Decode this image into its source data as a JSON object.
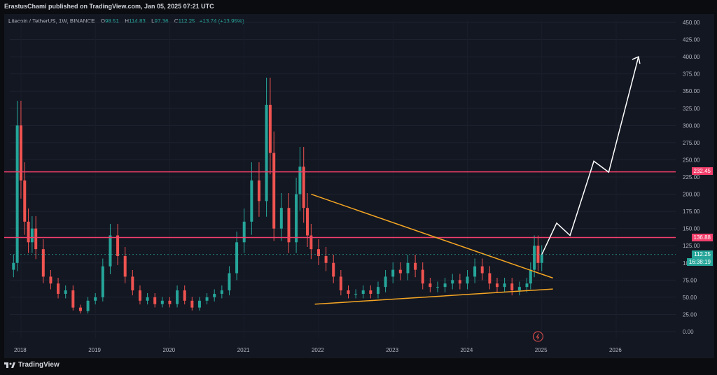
{
  "header": {
    "publish_line": "ErastusChami published on TradingView.com, Jan 05, 2025 07:21 UTC"
  },
  "symbol": {
    "name": "Litecoin / TetherUS, 1W, BINANCE",
    "open_label": "O",
    "open": "98.51",
    "high_label": "H",
    "high": "114.83",
    "low_label": "L",
    "low": "97.36",
    "close_label": "C",
    "close": "112.25",
    "change": "+13.74 (+13.95%)"
  },
  "price_tags": {
    "resistance_high": "232.45",
    "resistance_low": "136.88",
    "last_price": "112.25",
    "countdown": "16:38:19"
  },
  "footer": {
    "brand": "TradingView"
  },
  "colors": {
    "background": "#131722",
    "up": "#26a69a",
    "down": "#ef5350",
    "resistance": "#f23f6b",
    "trendline": "#f5a623",
    "projection": "#ffffff"
  },
  "chart_data": {
    "type": "line",
    "title": "",
    "y_ticks": [
      "450.00",
      "425.00",
      "400.00",
      "375.00",
      "350.00",
      "325.00",
      "300.00",
      "275.00",
      "250.00",
      "225.00",
      "200.00",
      "175.00",
      "150.00",
      "125.00",
      "100.00",
      "75.00",
      "50.00",
      "25.00",
      "0.00"
    ],
    "x_ticks": [
      "2018",
      "2019",
      "2020",
      "2021",
      "2022",
      "2023",
      "2024",
      "2025",
      "2026"
    ],
    "ylim": [
      0,
      460
    ],
    "xlim": [
      2017.85,
      2026.8
    ],
    "series": [
      {
        "style": "candles",
        "x": [
          2017.9,
          2017.95,
          2018.0,
          2018.05,
          2018.1,
          2018.15,
          2018.2,
          2018.3,
          2018.4,
          2018.5,
          2018.6,
          2018.7,
          2018.8,
          2018.9,
          2019.0,
          2019.1,
          2019.2,
          2019.3,
          2019.4,
          2019.5,
          2019.6,
          2019.7,
          2019.8,
          2019.9,
          2020.0,
          2020.1,
          2020.2,
          2020.3,
          2020.4,
          2020.5,
          2020.6,
          2020.7,
          2020.8,
          2020.9,
          2021.0,
          2021.1,
          2021.2,
          2021.3,
          2021.35,
          2021.4,
          2021.5,
          2021.6,
          2021.7,
          2021.75,
          2021.8,
          2021.85,
          2021.9,
          2022.0,
          2022.1,
          2022.2,
          2022.3,
          2022.4,
          2022.5,
          2022.6,
          2022.7,
          2022.8,
          2022.9,
          2023.0,
          2023.1,
          2023.2,
          2023.3,
          2023.4,
          2023.5,
          2023.6,
          2023.7,
          2023.8,
          2023.9,
          2024.0,
          2024.1,
          2024.2,
          2024.3,
          2024.4,
          2024.5,
          2024.6,
          2024.7,
          2024.8,
          2024.85,
          2024.9,
          2024.95,
          2025.0
        ],
        "close": [
          100,
          300,
          220,
          160,
          130,
          150,
          120,
          80,
          70,
          55,
          60,
          35,
          30,
          45,
          50,
          95,
          140,
          110,
          80,
          60,
          45,
          50,
          40,
          45,
          40,
          60,
          45,
          35,
          45,
          50,
          55,
          60,
          85,
          130,
          160,
          220,
          190,
          330,
          260,
          150,
          180,
          130,
          200,
          240,
          180,
          140,
          120,
          110,
          100,
          80,
          60,
          55,
          55,
          60,
          55,
          65,
          80,
          90,
          85,
          100,
          90,
          70,
          65,
          65,
          70,
          75,
          70,
          80,
          95,
          85,
          70,
          65,
          70,
          60,
          65,
          70,
          90,
          125,
          100,
          112.25
        ]
      }
    ],
    "annotations": [
      {
        "kind": "horizontal",
        "y": 232.45,
        "label": "232.45"
      },
      {
        "kind": "horizontal",
        "y": 136.88,
        "label": "136.88"
      },
      {
        "kind": "trendline",
        "from": [
          2021.9,
          200
        ],
        "to": [
          2025.15,
          78
        ]
      },
      {
        "kind": "trendline",
        "from": [
          2021.95,
          40
        ],
        "to": [
          2025.15,
          62
        ]
      },
      {
        "kind": "projection",
        "points": [
          [
            2025.0,
            112
          ],
          [
            2025.2,
            158
          ],
          [
            2025.38,
            140
          ],
          [
            2025.7,
            248
          ],
          [
            2025.9,
            232
          ],
          [
            2026.3,
            400
          ]
        ]
      }
    ]
  }
}
